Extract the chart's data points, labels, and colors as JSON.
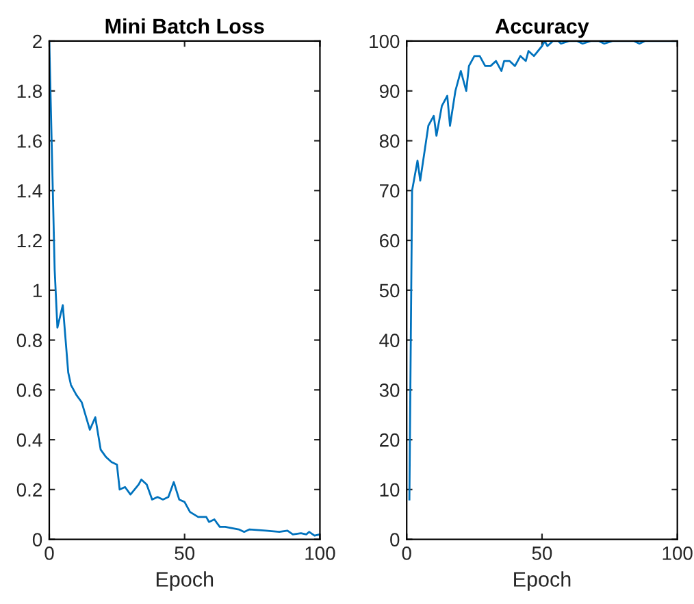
{
  "chart_data": [
    {
      "type": "line",
      "title": "Mini Batch Loss",
      "xlabel": "Epoch",
      "xlim": [
        0,
        100
      ],
      "xticks": [
        0,
        50,
        100
      ],
      "ylim": [
        0,
        2
      ],
      "yticks": [
        0,
        0.2,
        0.4,
        0.6,
        0.8,
        1,
        1.2,
        1.4,
        1.6,
        1.8,
        2
      ],
      "grid": false,
      "series": [
        {
          "color": "#0072bd",
          "x": [
            0,
            2,
            3,
            5,
            7,
            8,
            10,
            12,
            15,
            17,
            19,
            21,
            23,
            25,
            26,
            28,
            30,
            33,
            34,
            36,
            38,
            40,
            42,
            44,
            46,
            48,
            50,
            52,
            55,
            58,
            59,
            61,
            63,
            65,
            70,
            72,
            74,
            80,
            85,
            88,
            90,
            93,
            95,
            96,
            98,
            100
          ],
          "values": [
            2.0,
            1.08,
            0.85,
            0.94,
            0.67,
            0.62,
            0.58,
            0.55,
            0.44,
            0.49,
            0.36,
            0.33,
            0.31,
            0.3,
            0.2,
            0.21,
            0.18,
            0.22,
            0.24,
            0.22,
            0.16,
            0.17,
            0.16,
            0.17,
            0.23,
            0.16,
            0.15,
            0.11,
            0.09,
            0.09,
            0.07,
            0.08,
            0.05,
            0.05,
            0.04,
            0.03,
            0.04,
            0.035,
            0.03,
            0.035,
            0.02,
            0.025,
            0.02,
            0.03,
            0.015,
            0.02
          ]
        }
      ]
    },
    {
      "type": "line",
      "title": "Accuracy",
      "xlabel": "Epoch",
      "xlim": [
        0,
        100
      ],
      "xticks": [
        0,
        50,
        100
      ],
      "ylim": [
        0,
        100
      ],
      "yticks": [
        0,
        10,
        20,
        30,
        40,
        50,
        60,
        70,
        80,
        90,
        100
      ],
      "grid": false,
      "series": [
        {
          "color": "#0072bd",
          "x": [
            1,
            2,
            4,
            5,
            8,
            10,
            11,
            13,
            15,
            16,
            18,
            20,
            22,
            23,
            25,
            27,
            29,
            31,
            33,
            35,
            36,
            38,
            40,
            42,
            44,
            45,
            47,
            50,
            51,
            52,
            54,
            56,
            57,
            60,
            63,
            65,
            68,
            71,
            73,
            76,
            84,
            86,
            88,
            100
          ],
          "values": [
            8,
            70,
            76,
            72,
            83,
            85,
            81,
            87,
            89,
            83,
            90,
            94,
            90,
            95,
            97,
            97,
            95,
            95,
            96,
            94,
            96,
            96,
            95,
            97,
            96,
            98,
            97,
            99,
            100,
            99,
            100,
            100,
            99.5,
            100,
            100,
            99.5,
            100,
            100,
            99.5,
            100,
            100,
            99.5,
            100,
            100
          ]
        }
      ]
    }
  ]
}
